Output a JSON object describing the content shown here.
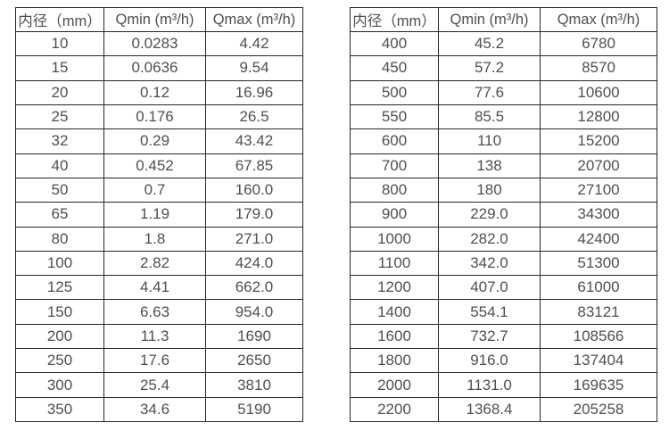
{
  "chart_data": [
    {
      "type": "table",
      "title": "",
      "columns": [
        "内径（mm）",
        "Qmin (m³/h)",
        "Qmax (m³/h)"
      ],
      "rows": [
        [
          "10",
          "0.0283",
          "4.42"
        ],
        [
          "15",
          "0.0636",
          "9.54"
        ],
        [
          "20",
          "0.12",
          "16.96"
        ],
        [
          "25",
          "0.176",
          "26.5"
        ],
        [
          "32",
          "0.29",
          "43.42"
        ],
        [
          "40",
          "0.452",
          "67.85"
        ],
        [
          "50",
          "0.7",
          "160.0"
        ],
        [
          "65",
          "1.19",
          "179.0"
        ],
        [
          "80",
          "1.8",
          "271.0"
        ],
        [
          "100",
          "2.82",
          "424.0"
        ],
        [
          "125",
          "4.41",
          "662.0"
        ],
        [
          "150",
          "6.63",
          "954.0"
        ],
        [
          "200",
          "11.3",
          "1690"
        ],
        [
          "250",
          "17.6",
          "2650"
        ],
        [
          "300",
          "25.4",
          "3810"
        ],
        [
          "350",
          "34.6",
          "5190"
        ]
      ]
    },
    {
      "type": "table",
      "title": "",
      "columns": [
        "内径（mm）",
        "Qmin (m³/h)",
        "Qmax (m³/h)"
      ],
      "rows": [
        [
          "400",
          "45.2",
          "6780"
        ],
        [
          "450",
          "57.2",
          "8570"
        ],
        [
          "500",
          "77.6",
          "10600"
        ],
        [
          "550",
          "85.5",
          "12800"
        ],
        [
          "600",
          "110",
          "15200"
        ],
        [
          "700",
          "138",
          "20700"
        ],
        [
          "800",
          "180",
          "27100"
        ],
        [
          "900",
          "229.0",
          "34300"
        ],
        [
          "1000",
          "282.0",
          "42400"
        ],
        [
          "1100",
          "342.0",
          "51300"
        ],
        [
          "1200",
          "407.0",
          "61000"
        ],
        [
          "1400",
          "554.1",
          "83121"
        ],
        [
          "1600",
          "732.7",
          "108566"
        ],
        [
          "1800",
          "916.0",
          "137404"
        ],
        [
          "2000",
          "1131.0",
          "169635"
        ],
        [
          "2200",
          "1368.4",
          "205258"
        ]
      ]
    }
  ],
  "colors": {
    "background": "#ffffff",
    "text": "#4f4f4f",
    "border": "#262626"
  }
}
